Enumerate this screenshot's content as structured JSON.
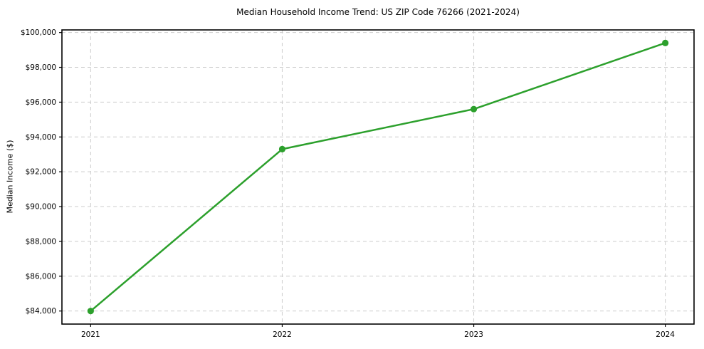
{
  "title": "Median Household Income Trend: US ZIP Code 76266 (2021-2024)",
  "colors": {
    "line": "#2ca02c",
    "marker": "#2ca02c",
    "grid": "#cccccc",
    "spine": "#000000",
    "text": "#000000",
    "background": "#ffffff"
  },
  "chart_data": {
    "type": "line",
    "title": "Median Household Income Trend: US ZIP Code 76266 (2021-2024)",
    "xlabel": "",
    "ylabel": "Median Income ($)",
    "x": [
      2021,
      2022,
      2023,
      2024
    ],
    "series": [
      {
        "name": "Median Household Income",
        "values": [
          84000,
          93300,
          95600,
          99400
        ]
      }
    ],
    "xticks": [
      2021,
      2022,
      2023,
      2024
    ],
    "xtick_labels": [
      "2021",
      "2022",
      "2023",
      "2024"
    ],
    "yticks": [
      84000,
      86000,
      88000,
      90000,
      92000,
      94000,
      96000,
      98000,
      100000
    ],
    "ytick_labels": [
      "$84,000",
      "$86,000",
      "$88,000",
      "$90,000",
      "$92,000",
      "$94,000",
      "$96,000",
      "$98,000",
      "$100,000"
    ],
    "xlim": [
      2020.85,
      2024.15
    ],
    "ylim": [
      83250,
      100150
    ],
    "grid": true,
    "grid_style": "dashed",
    "legend_position": "none",
    "marker": "circle"
  }
}
